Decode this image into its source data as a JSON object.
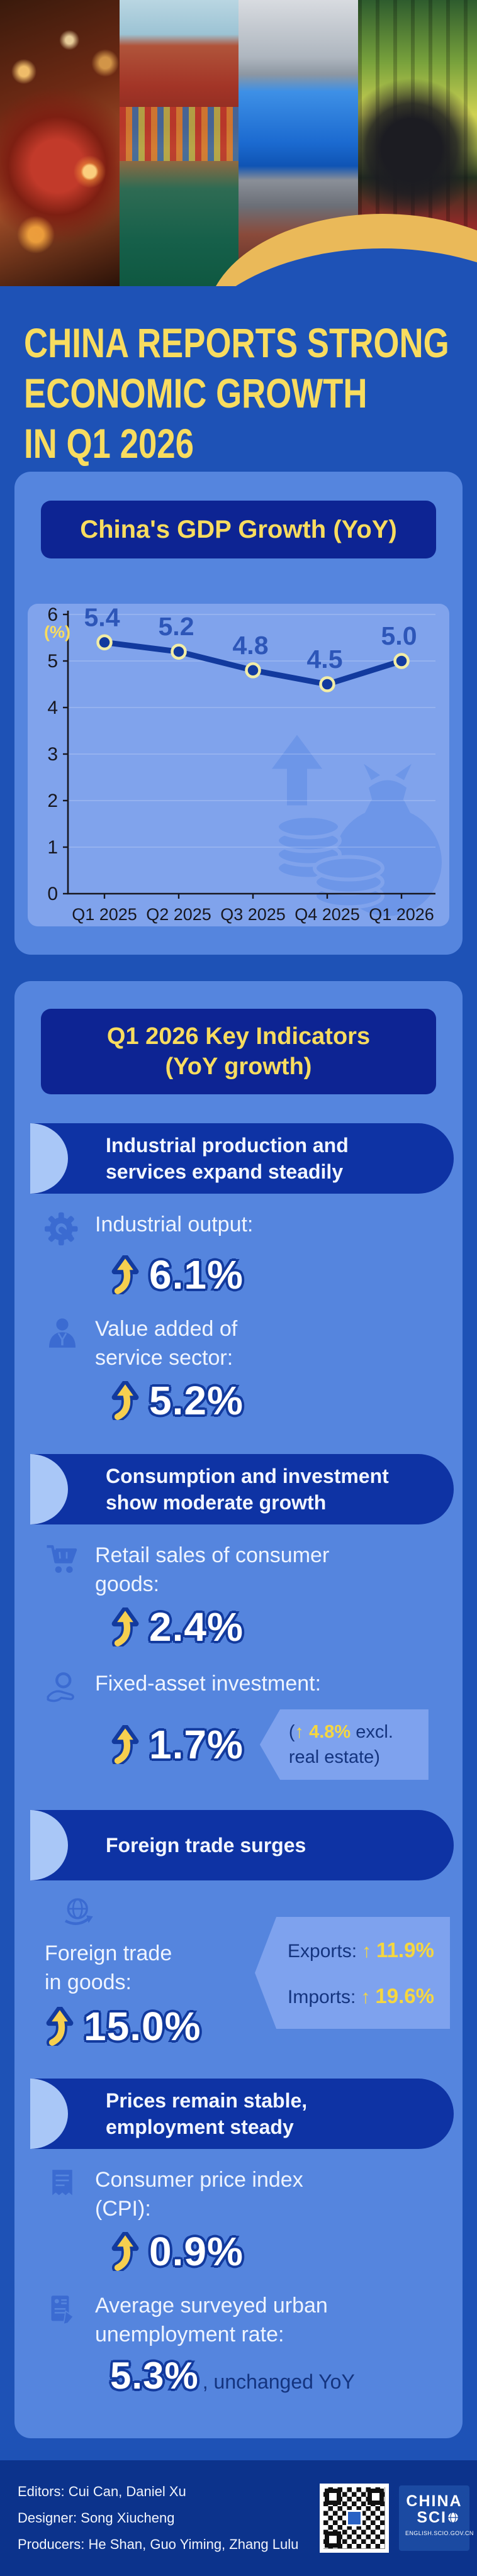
{
  "title": {
    "line1": "CHINA REPORTS STRONG",
    "line2": "ECONOMIC GROWTH",
    "line3": "IN Q1 2026"
  },
  "gdp": {
    "header": "China's GDP Growth (YoY)",
    "unit": "(%)"
  },
  "chart_data": {
    "type": "line",
    "title": "China's GDP Growth (YoY)",
    "ylabel": "(%)",
    "xlabel": "",
    "categories": [
      "Q1 2025",
      "Q2 2025",
      "Q3 2025",
      "Q4 2025",
      "Q1 2026"
    ],
    "values": [
      5.4,
      5.2,
      4.8,
      4.5,
      5.0
    ],
    "ylim": [
      0,
      6
    ],
    "yticks": [
      0,
      1,
      2,
      3,
      4,
      5,
      6
    ],
    "grid": true,
    "legend": "none",
    "line_color": "#123a9e",
    "point_ring_color": "#f2eda6",
    "value_label_color": "#2d56b8"
  },
  "key": {
    "header_line1": "Q1 2026 Key Indicators",
    "header_line2": "(YoY growth)",
    "banners": {
      "b1_line1": "Industrial production and",
      "b1_line2": "services expand steadily",
      "b2_line1": "Consumption and investment",
      "b2_line2": "show moderate growth",
      "b3_line1": "Foreign trade surges",
      "b4_line1": "Prices remain stable,",
      "b4_line2": "employment steady"
    },
    "industrial_output": {
      "label": "Industrial output:",
      "value": "6.1%"
    },
    "service_sector": {
      "label_line1": "Value added of",
      "label_line2": "service sector:",
      "value": "5.2%"
    },
    "retail": {
      "label_line1": "Retail sales of consumer",
      "label_line2": "goods:",
      "value": "2.4%"
    },
    "fixed_asset": {
      "label": "Fixed-asset investment:",
      "value": "1.7%",
      "note_open": "(",
      "note_arrow": "↑",
      "note_value": "4.8%",
      "note_tail": " excl. real estate)"
    },
    "trade": {
      "label_line1": "Foreign trade",
      "label_line2": "in goods:",
      "value": "15.0%",
      "exports_label": "Exports:",
      "exports_arrow": "↑",
      "exports_value": "11.9%",
      "imports_label": "Imports:",
      "imports_arrow": "↑",
      "imports_value": "19.6%"
    },
    "cpi": {
      "label_line1": "Consumer price index",
      "label_line2": "(CPI):",
      "value": "0.9%"
    },
    "unemployment": {
      "label_line1": "Average surveyed urban",
      "label_line2": "unemployment rate:",
      "value": "5.3%",
      "suffix": ", unchanged YoY"
    }
  },
  "footer": {
    "editors": "Editors: Cui Can, Daniel Xu",
    "designer": "Designer: Song Xiucheng",
    "producers": "Producers: He Shan, Guo Yiming, Zhang Lulu",
    "logo_line1": "CHINA",
    "logo_line2": "SCI",
    "logo_url": "ENGLISH.SCIO.GOV.CN"
  },
  "icons": {
    "industrial_output": "gear-wrench-icon",
    "service_sector": "businessperson-icon",
    "retail": "shopping-cart-icon",
    "fixed_asset": "hand-coin-icon",
    "trade": "globe-arrow-icon",
    "cpi": "receipt-icon",
    "unemployment": "survey-document-icon",
    "watermark": "money-bag-coins-arrow"
  },
  "colors": {
    "page_bg": "#1e52b6",
    "card_bg": "#5585de",
    "panel_bg": "#80a3ec",
    "header_navy": "#0d2493",
    "ribbon_navy": "#0e33a4",
    "footer_navy": "#0c338c",
    "accent_yellow": "#f8dc5f",
    "value_yellow": "#f6d73f",
    "stat_outline": "#123a9e",
    "gold_swoosh": "#eab959",
    "note_bg": "#7ea2ee"
  }
}
